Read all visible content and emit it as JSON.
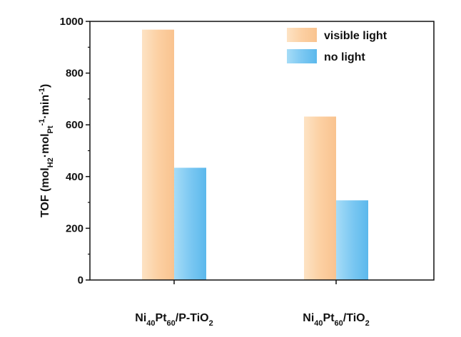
{
  "chart_data": {
    "type": "bar",
    "categories": [
      "Ni40Pt60/P-TiO2",
      "Ni40Pt60/TiO2"
    ],
    "category_parts": [
      [
        {
          "t": "Ni"
        },
        {
          "t": "40",
          "sub": true
        },
        {
          "t": "Pt"
        },
        {
          "t": "60",
          "sub": true
        },
        {
          "t": "/P-TiO"
        },
        {
          "t": "2",
          "sub": true
        }
      ],
      [
        {
          "t": "Ni"
        },
        {
          "t": "40",
          "sub": true
        },
        {
          "t": "Pt"
        },
        {
          "t": "60",
          "sub": true
        },
        {
          "t": "/TiO"
        },
        {
          "t": "2",
          "sub": true
        }
      ]
    ],
    "series": [
      {
        "name": "visible light",
        "values": [
          968,
          632
        ],
        "color": "#fcd3a8"
      },
      {
        "name": "no light",
        "values": [
          434,
          308
        ],
        "color": "#7cc8f2"
      }
    ],
    "ylabel": "TOF (molH2·molPt-1·min-1)",
    "ylabel_parts": [
      {
        "t": "TOF (mol"
      },
      {
        "t": "H2",
        "sub": true
      },
      {
        "t": "·mol"
      },
      {
        "t": "Pt",
        "sub": true
      },
      {
        "t": "-1",
        "sup": true
      },
      {
        "t": "·min"
      },
      {
        "t": "-1",
        "sup": true
      },
      {
        "t": ")"
      }
    ],
    "xlabel": "",
    "ylim": [
      0,
      1000
    ],
    "yticks": [
      "0",
      "200",
      "400",
      "600",
      "800",
      "1000"
    ],
    "grid": false,
    "legend_position": "top-right"
  }
}
